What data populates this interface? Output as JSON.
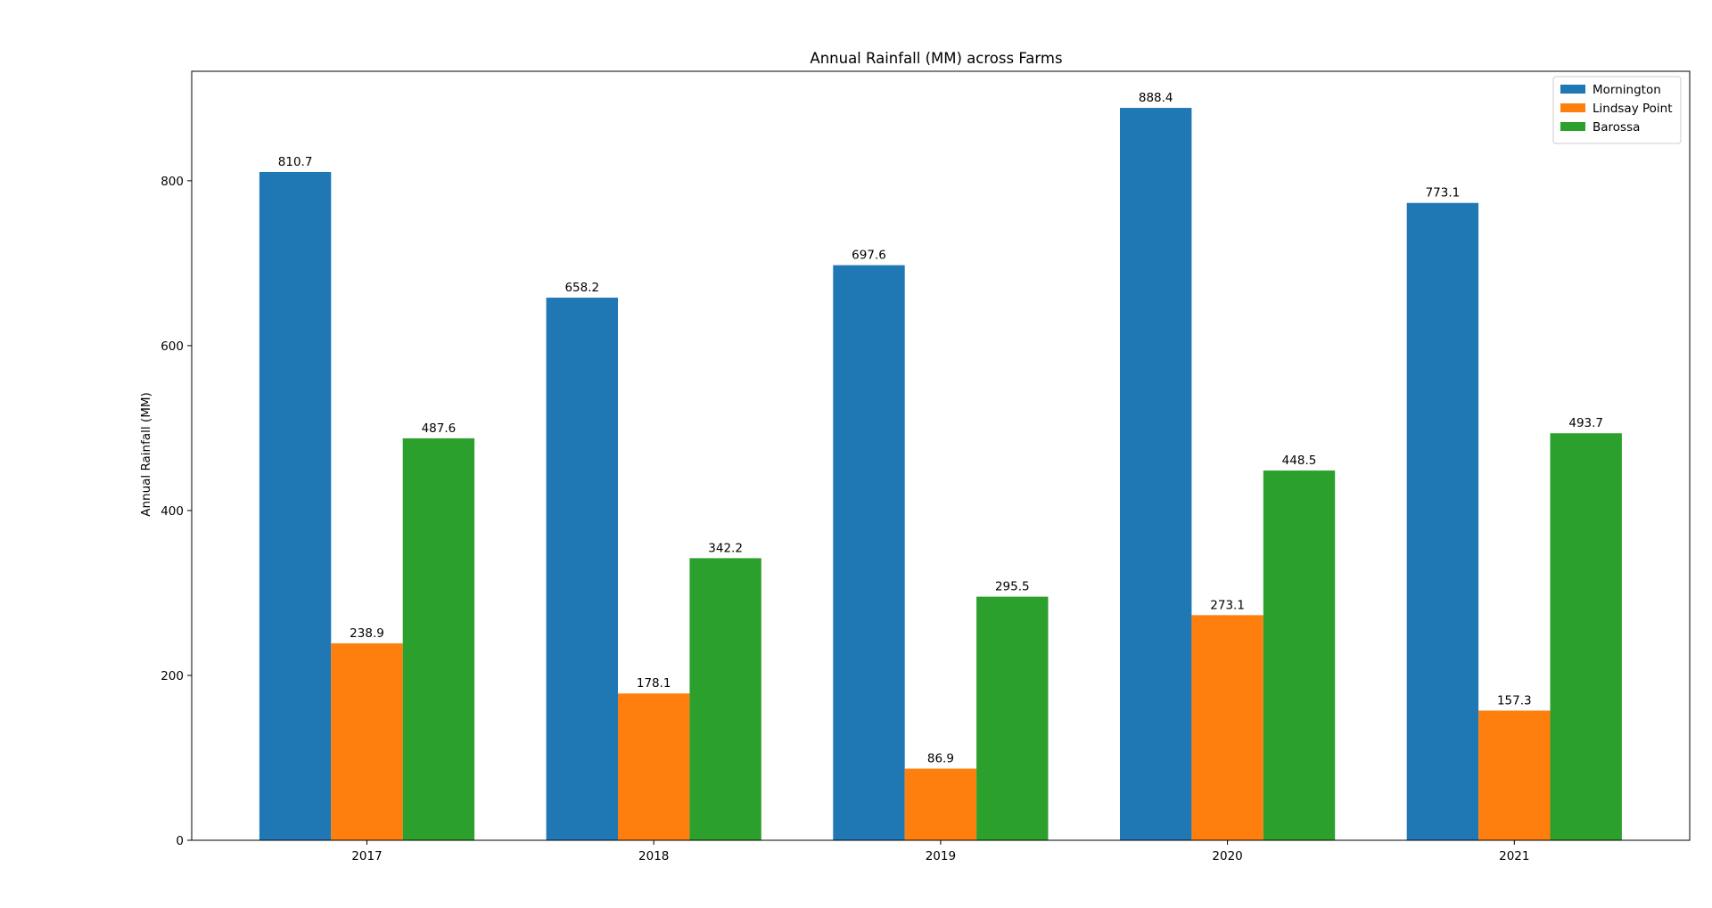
{
  "chart_data": {
    "type": "bar",
    "title": "Annual Rainfall (MM) across Farms",
    "xlabel": "",
    "ylabel": "Annual Rainfall (MM)",
    "categories": [
      "2017",
      "2018",
      "2019",
      "2020",
      "2021"
    ],
    "series": [
      {
        "name": "Mornington",
        "color": "#1f77b4",
        "values": [
          810.7,
          658.2,
          697.6,
          888.4,
          773.1
        ]
      },
      {
        "name": "Lindsay Point",
        "color": "#ff7f0e",
        "values": [
          238.9,
          178.1,
          86.9,
          273.1,
          157.3
        ]
      },
      {
        "name": "Barossa",
        "color": "#2ca02c",
        "values": [
          487.6,
          342.2,
          295.5,
          448.5,
          493.7
        ]
      }
    ],
    "ylim": [
      0,
      932.8
    ],
    "yticks": [
      0,
      200,
      400,
      600,
      800
    ],
    "grid": false,
    "legend": "upper right",
    "value_labels": true
  }
}
